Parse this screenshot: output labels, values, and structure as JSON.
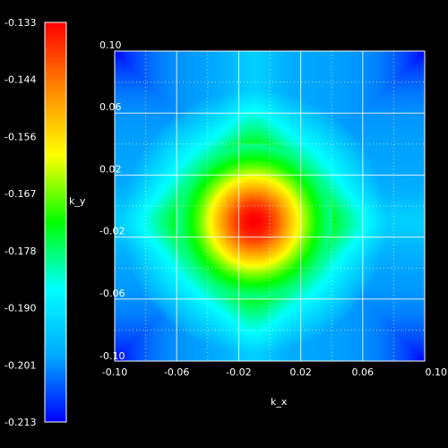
{
  "chart_data": {
    "type": "heatmap",
    "title": "",
    "xlabel": "k_x",
    "ylabel": "k_y",
    "x_ticks": [
      "-0.10",
      "-0.06",
      "-0.02",
      "0.02",
      "0.06",
      "0.10"
    ],
    "y_ticks": [
      "0.10",
      "0.06",
      "0.02",
      "-0.02",
      "-0.06",
      "-0.10"
    ],
    "x_tick_values": [
      -0.1,
      -0.06,
      -0.02,
      0.02,
      0.06,
      0.1
    ],
    "y_tick_values": [
      0.1,
      0.06,
      0.02,
      -0.02,
      -0.06,
      -0.1
    ],
    "xlim": [
      -0.1,
      0.1
    ],
    "ylim": [
      -0.1,
      0.1
    ],
    "colorbar": {
      "labels": [
        "-0.133",
        "-0.144",
        "-0.156",
        "-0.167",
        "-0.178",
        "-0.190",
        "-0.201",
        "-0.213"
      ],
      "range": [
        -0.213,
        -0.133
      ],
      "colormap": [
        "#0000ff",
        "#00aaff",
        "#00ffff",
        "#00ff00",
        "#ffff00",
        "#ff8800",
        "#ff0000"
      ]
    },
    "field": {
      "peak_center": [
        -0.01,
        -0.01
      ],
      "peak_value": -0.133,
      "ring_value": -0.175,
      "edge_value": -0.2,
      "corner_value": -0.213
    },
    "grid": true,
    "background": "#000000"
  }
}
